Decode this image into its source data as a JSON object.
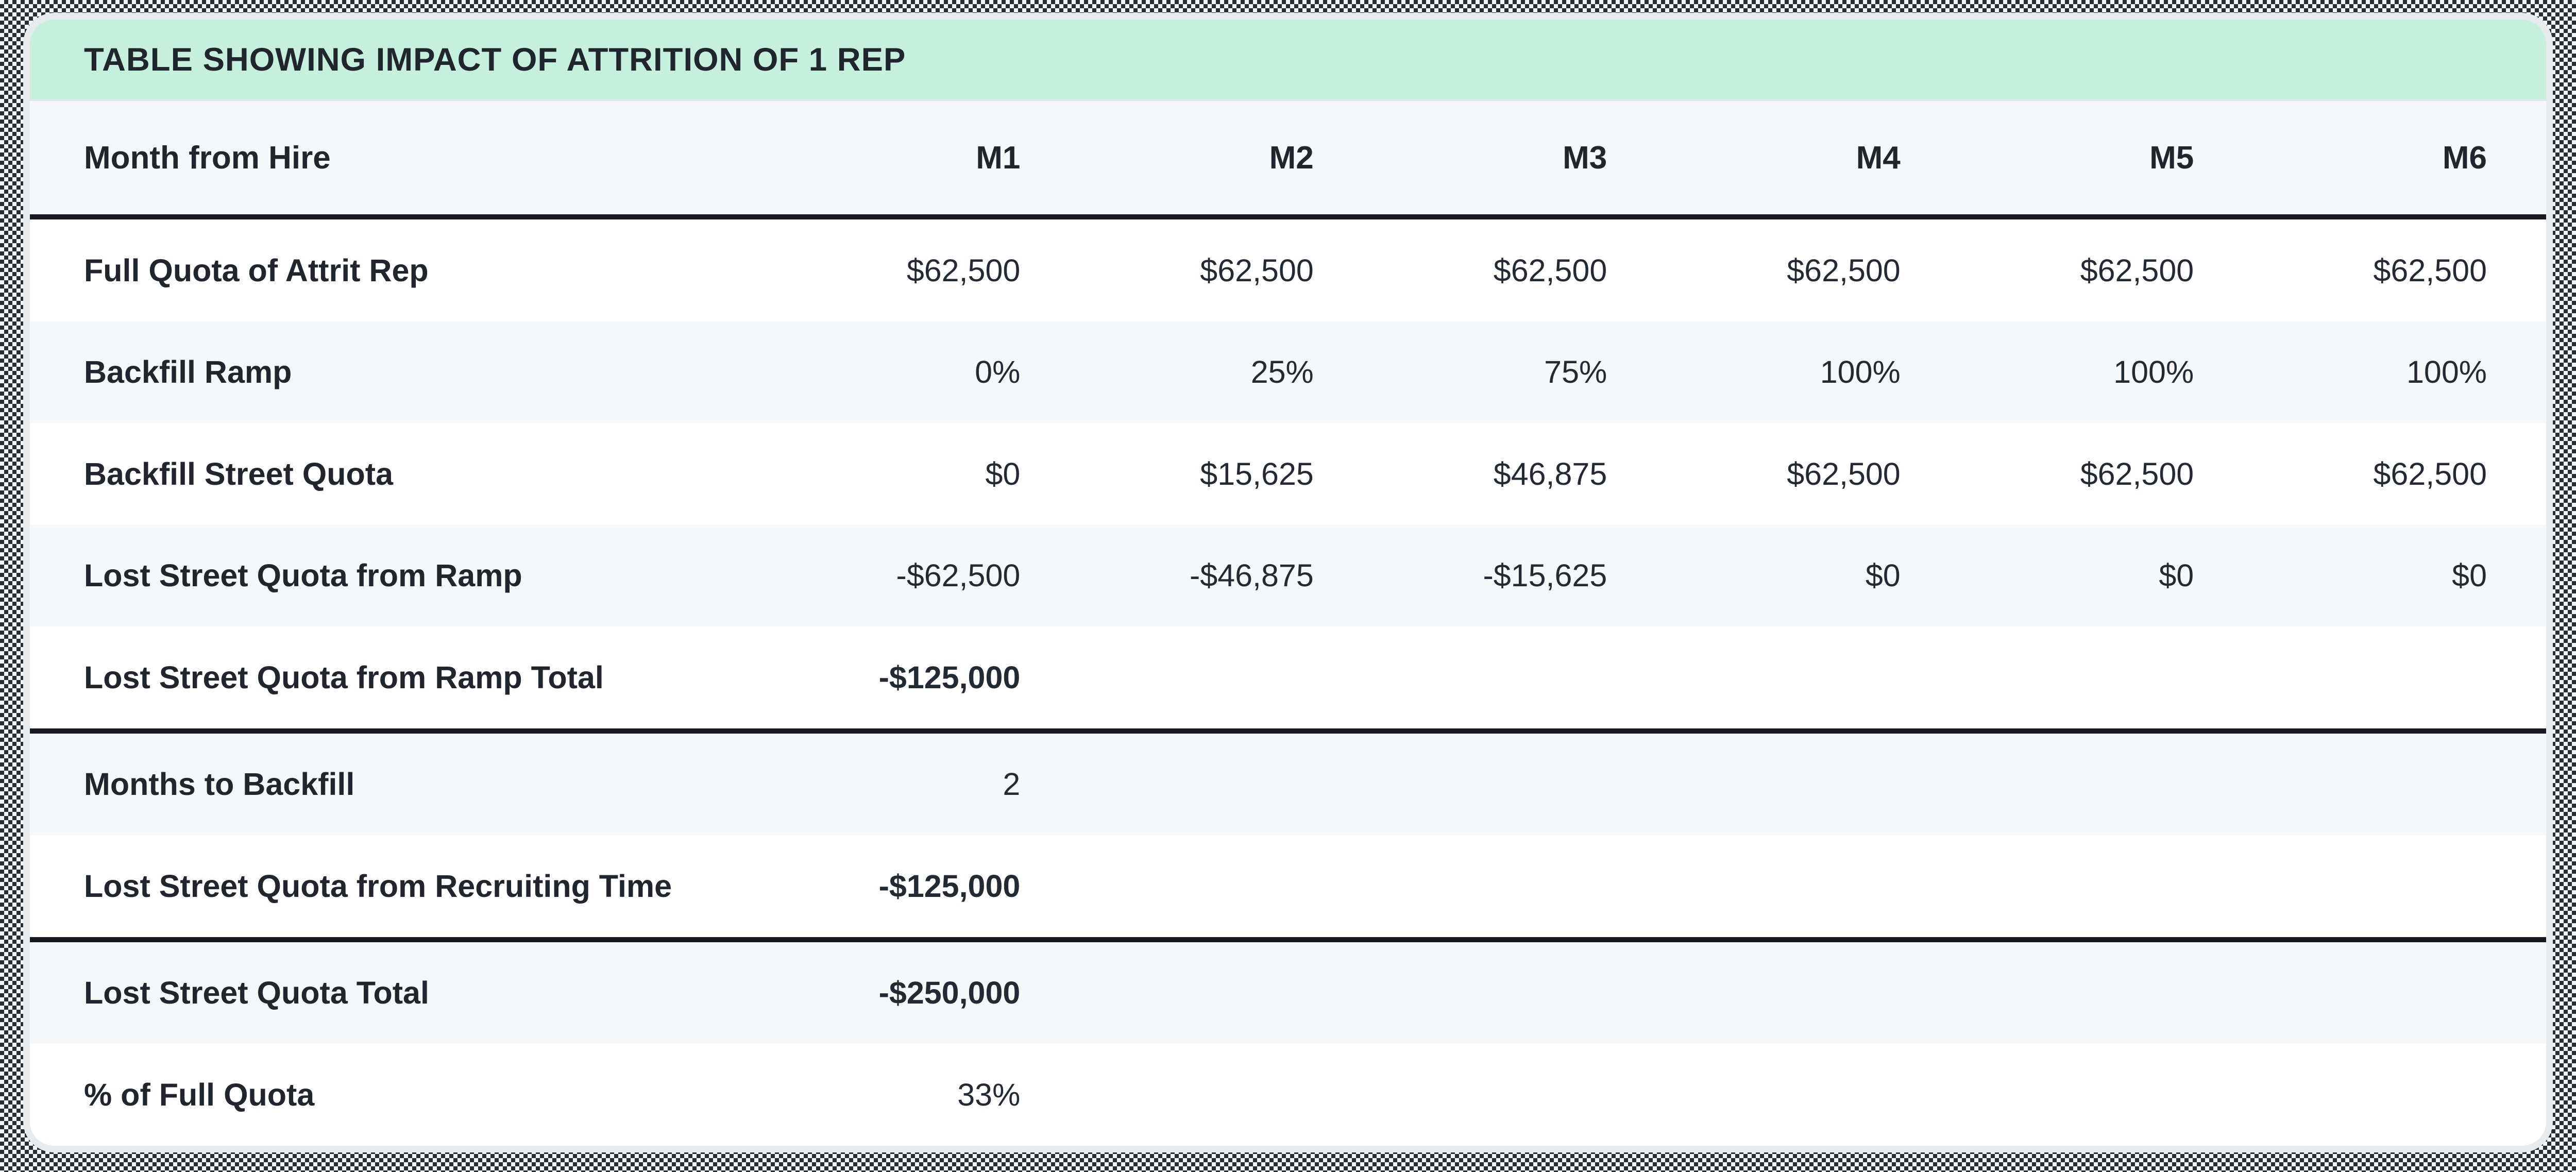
{
  "colors": {
    "title_bar_bg": "#c6f0dd",
    "row_alt_bg": "#f6f7f9",
    "row_bg": "#ffffff",
    "text": "#20252e",
    "section_divider": "#15191f",
    "card_border": "#e8ebee"
  },
  "chart_data": {
    "type": "table",
    "title": "TABLE SHOWING IMPACT OF ATTRITION OF 1 REP",
    "columns": [
      "Month from Hire",
      "M1",
      "M2",
      "M3",
      "M4",
      "M5",
      "M6"
    ],
    "rows": [
      {
        "label": "Full Quota of Attrit Rep",
        "values": [
          "$62,500",
          "$62,500",
          "$62,500",
          "$62,500",
          "$62,500",
          "$62,500"
        ],
        "bold_values": false,
        "section_end": false
      },
      {
        "label": "Backfill Ramp",
        "values": [
          "0%",
          "25%",
          "75%",
          "100%",
          "100%",
          "100%"
        ],
        "bold_values": false,
        "section_end": false
      },
      {
        "label": "Backfill Street Quota",
        "values": [
          "$0",
          "$15,625",
          "$46,875",
          "$62,500",
          "$62,500",
          "$62,500"
        ],
        "bold_values": false,
        "section_end": false
      },
      {
        "label": "Lost Street Quota from Ramp",
        "values": [
          "-$62,500",
          "-$46,875",
          "-$15,625",
          "$0",
          "$0",
          "$0"
        ],
        "bold_values": false,
        "section_end": false
      },
      {
        "label": "Lost Street Quota from Ramp Total",
        "values": [
          "-$125,000",
          "",
          "",
          "",
          "",
          ""
        ],
        "bold_values": true,
        "section_end": true
      },
      {
        "label": "Months to Backfill",
        "values": [
          "2",
          "",
          "",
          "",
          "",
          ""
        ],
        "bold_values": false,
        "section_end": false
      },
      {
        "label": "Lost Street Quota from Recruiting Time",
        "values": [
          "-$125,000",
          "",
          "",
          "",
          "",
          ""
        ],
        "bold_values": true,
        "section_end": true
      },
      {
        "label": "Lost Street Quota Total",
        "values": [
          "-$250,000",
          "",
          "",
          "",
          "",
          ""
        ],
        "bold_values": true,
        "section_end": false
      },
      {
        "label": "% of Full Quota",
        "values": [
          "33%",
          "",
          "",
          "",
          "",
          ""
        ],
        "bold_values": false,
        "section_end": false
      }
    ]
  }
}
